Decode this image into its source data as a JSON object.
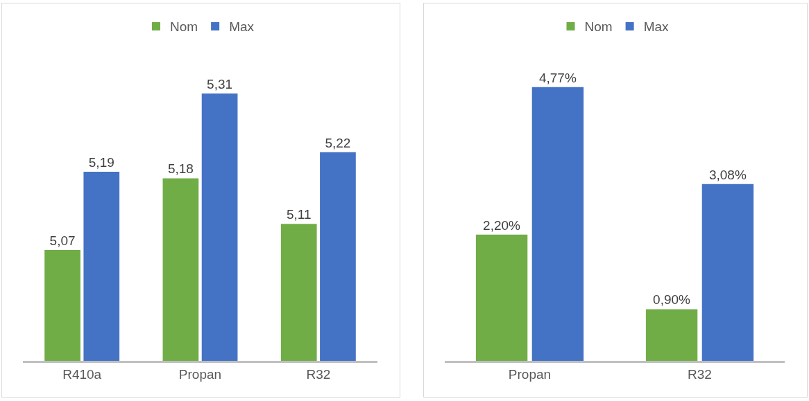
{
  "chart_data": [
    {
      "type": "bar",
      "categories": [
        "R410a",
        "Propan",
        "R32"
      ],
      "ylim": [
        4.9,
        5.31
      ],
      "legend": "top",
      "series": [
        {
          "name": "Nom",
          "color": "#70ad47",
          "values": [
            5.07,
            5.18,
            5.11
          ],
          "value_labels": [
            "5,07",
            "5,18",
            "5,11"
          ]
        },
        {
          "name": "Max",
          "color": "#4472c4",
          "values": [
            5.19,
            5.31,
            5.22
          ],
          "value_labels": [
            "5,19",
            "5,31",
            "5,22"
          ]
        }
      ]
    },
    {
      "type": "bar",
      "categories": [
        "Propan",
        "R32"
      ],
      "legend": "top",
      "series": [
        {
          "name": "Nom",
          "color": "#70ad47",
          "values": [
            2.2,
            0.9
          ],
          "value_labels": [
            "2,20%",
            "0,90%"
          ]
        },
        {
          "name": "Max",
          "color": "#4472c4",
          "values": [
            4.77,
            3.08
          ],
          "value_labels": [
            "4,77%",
            "3,08%"
          ]
        }
      ]
    }
  ]
}
